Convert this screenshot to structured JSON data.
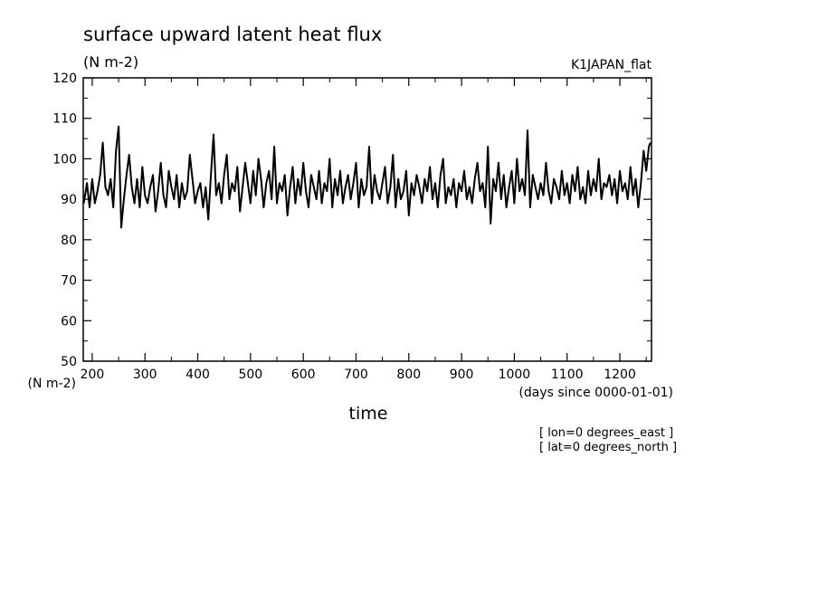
{
  "header": {
    "title": "surface upward latent heat flux",
    "units": "(N m-2)",
    "experiment": "K1JAPAN_flat"
  },
  "footer": {
    "lon_note": "[ lon=0 degrees_east ]",
    "lat_note": "[ lat=0 degrees_north ]"
  },
  "chart_data": {
    "type": "line",
    "title": "surface upward latent heat flux",
    "xlabel": "time",
    "x_units": "(days since 0000-01-01)",
    "ylabel": "",
    "y_units": "(N m-2)",
    "xlim": [
      183,
      1260
    ],
    "ylim": [
      50,
      120
    ],
    "x_ticks": [
      "200",
      "300",
      "400",
      "500",
      "600",
      "700",
      "800",
      "900",
      "1000",
      "1100",
      "1200"
    ],
    "y_ticks": [
      "50",
      "60",
      "70",
      "80",
      "90",
      "100",
      "110",
      "120"
    ],
    "grid": false,
    "series": [
      {
        "color": "#000000",
        "x": [
          184,
          190,
          195,
          200,
          205,
          210,
          215,
          220,
          225,
          230,
          235,
          240,
          245,
          250,
          255,
          260,
          265,
          270,
          275,
          280,
          285,
          290,
          295,
          300,
          305,
          310,
          315,
          320,
          325,
          330,
          335,
          340,
          345,
          350,
          355,
          360,
          365,
          370,
          375,
          380,
          385,
          390,
          395,
          400,
          405,
          410,
          415,
          420,
          425,
          430,
          435,
          440,
          445,
          450,
          455,
          460,
          465,
          470,
          475,
          480,
          485,
          490,
          495,
          500,
          505,
          510,
          515,
          520,
          525,
          530,
          535,
          540,
          545,
          550,
          555,
          560,
          565,
          570,
          575,
          580,
          585,
          590,
          595,
          600,
          605,
          610,
          615,
          620,
          625,
          630,
          635,
          640,
          645,
          650,
          655,
          660,
          665,
          670,
          675,
          680,
          685,
          690,
          695,
          700,
          705,
          710,
          715,
          720,
          725,
          730,
          735,
          740,
          745,
          750,
          755,
          760,
          765,
          770,
          775,
          780,
          785,
          790,
          795,
          800,
          805,
          810,
          815,
          820,
          825,
          830,
          835,
          840,
          845,
          850,
          855,
          860,
          865,
          870,
          875,
          880,
          885,
          890,
          895,
          900,
          905,
          910,
          915,
          920,
          925,
          930,
          935,
          940,
          945,
          950,
          955,
          960,
          965,
          970,
          975,
          980,
          985,
          990,
          995,
          1000,
          1005,
          1010,
          1015,
          1020,
          1025,
          1030,
          1035,
          1040,
          1045,
          1050,
          1055,
          1060,
          1065,
          1070,
          1075,
          1080,
          1085,
          1090,
          1095,
          1100,
          1105,
          1110,
          1115,
          1120,
          1125,
          1130,
          1135,
          1140,
          1145,
          1150,
          1155,
          1160,
          1165,
          1170,
          1175,
          1180,
          1185,
          1190,
          1195,
          1200,
          1205,
          1210,
          1215,
          1220,
          1225,
          1230,
          1235,
          1240,
          1245,
          1250,
          1255,
          1258
        ],
        "y": [
          89,
          94,
          88,
          95,
          89,
          92,
          96,
          104,
          93,
          91,
          95,
          88,
          102,
          108,
          83,
          90,
          96,
          101,
          93,
          89,
          95,
          88,
          98,
          91,
          89,
          93,
          96,
          87,
          92,
          99,
          91,
          88,
          97,
          93,
          90,
          96,
          88,
          94,
          90,
          92,
          101,
          95,
          89,
          92,
          94,
          88,
          93,
          85,
          96,
          106,
          91,
          94,
          89,
          96,
          101,
          90,
          94,
          92,
          98,
          87,
          93,
          99,
          94,
          89,
          97,
          91,
          100,
          95,
          88,
          94,
          97,
          90,
          103,
          89,
          94,
          92,
          96,
          86,
          93,
          98,
          89,
          95,
          91,
          99,
          92,
          88,
          96,
          93,
          90,
          97,
          89,
          94,
          92,
          100,
          88,
          95,
          91,
          97,
          89,
          93,
          96,
          90,
          94,
          99,
          88,
          95,
          91,
          93,
          103,
          89,
          96,
          92,
          90,
          94,
          98,
          89,
          93,
          101,
          88,
          95,
          90,
          92,
          97,
          86,
          94,
          91,
          96,
          93,
          89,
          95,
          92,
          98,
          90,
          94,
          88,
          96,
          100,
          89,
          93,
          91,
          95,
          88,
          94,
          92,
          97,
          90,
          93,
          89,
          95,
          99,
          92,
          94,
          88,
          103,
          84,
          95,
          92,
          99,
          90,
          96,
          88,
          93,
          97,
          89,
          100,
          92,
          95,
          91,
          107,
          88,
          96,
          93,
          90,
          94,
          91,
          99,
          92,
          89,
          95,
          93,
          90,
          97,
          91,
          94,
          89,
          96,
          92,
          98,
          90,
          93,
          89,
          97,
          91,
          95,
          92,
          100,
          90,
          94,
          93,
          96,
          91,
          95,
          89,
          97,
          92,
          94,
          90,
          98,
          91,
          95,
          88,
          94,
          102,
          97,
          103,
          104
        ]
      }
    ]
  }
}
